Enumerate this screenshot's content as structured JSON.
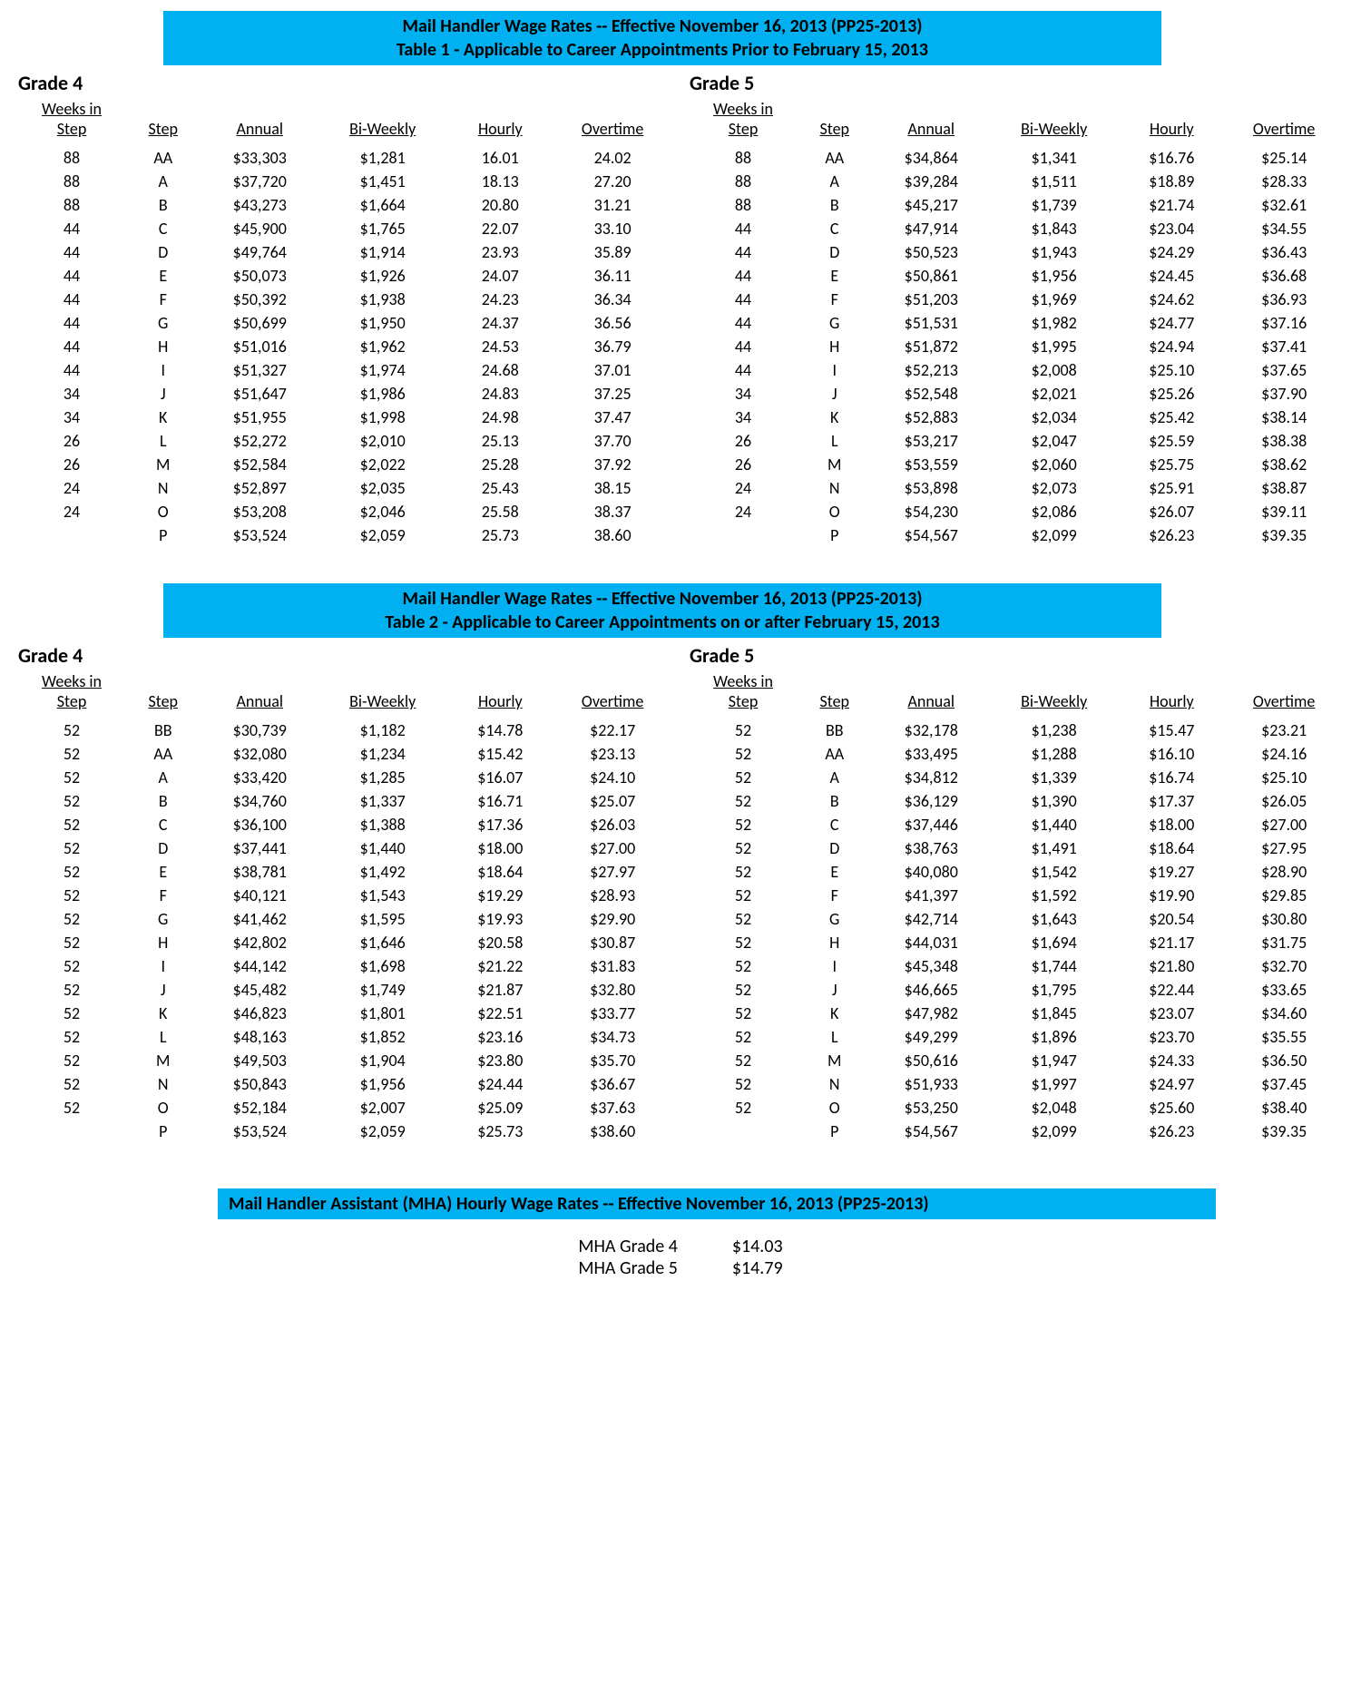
{
  "header_color": "#00b0f0",
  "table1": {
    "title_line1": "Mail Handler Wage Rates -- Effective November 16, 2013 (PP25-2013)",
    "title_line2": "Table 1 - Applicable to Career Appointments Prior to February 15, 2013",
    "columns": [
      "Weeks in Step",
      "Step",
      "Annual",
      "Bi-Weekly",
      "Hourly",
      "Overtime"
    ],
    "grade4": {
      "label": "Grade 4",
      "rows": [
        [
          "88",
          "AA",
          "$33,303",
          "$1,281",
          "16.01",
          "24.02"
        ],
        [
          "88",
          "A",
          "$37,720",
          "$1,451",
          "18.13",
          "27.20"
        ],
        [
          "88",
          "B",
          "$43,273",
          "$1,664",
          "20.80",
          "31.21"
        ],
        [
          "44",
          "C",
          "$45,900",
          "$1,765",
          "22.07",
          "33.10"
        ],
        [
          "44",
          "D",
          "$49,764",
          "$1,914",
          "23.93",
          "35.89"
        ],
        [
          "44",
          "E",
          "$50,073",
          "$1,926",
          "24.07",
          "36.11"
        ],
        [
          "44",
          "F",
          "$50,392",
          "$1,938",
          "24.23",
          "36.34"
        ],
        [
          "44",
          "G",
          "$50,699",
          "$1,950",
          "24.37",
          "36.56"
        ],
        [
          "44",
          "H",
          "$51,016",
          "$1,962",
          "24.53",
          "36.79"
        ],
        [
          "44",
          "I",
          "$51,327",
          "$1,974",
          "24.68",
          "37.01"
        ],
        [
          "34",
          "J",
          "$51,647",
          "$1,986",
          "24.83",
          "37.25"
        ],
        [
          "34",
          "K",
          "$51,955",
          "$1,998",
          "24.98",
          "37.47"
        ],
        [
          "26",
          "L",
          "$52,272",
          "$2,010",
          "25.13",
          "37.70"
        ],
        [
          "26",
          "M",
          "$52,584",
          "$2,022",
          "25.28",
          "37.92"
        ],
        [
          "24",
          "N",
          "$52,897",
          "$2,035",
          "25.43",
          "38.15"
        ],
        [
          "24",
          "O",
          "$53,208",
          "$2,046",
          "25.58",
          "38.37"
        ],
        [
          "",
          "P",
          "$53,524",
          "$2,059",
          "25.73",
          "38.60"
        ]
      ]
    },
    "grade5": {
      "label": "Grade 5",
      "rows": [
        [
          "88",
          "AA",
          "$34,864",
          "$1,341",
          "$16.76",
          "$25.14"
        ],
        [
          "88",
          "A",
          "$39,284",
          "$1,511",
          "$18.89",
          "$28.33"
        ],
        [
          "88",
          "B",
          "$45,217",
          "$1,739",
          "$21.74",
          "$32.61"
        ],
        [
          "44",
          "C",
          "$47,914",
          "$1,843",
          "$23.04",
          "$34.55"
        ],
        [
          "44",
          "D",
          "$50,523",
          "$1,943",
          "$24.29",
          "$36.43"
        ],
        [
          "44",
          "E",
          "$50,861",
          "$1,956",
          "$24.45",
          "$36.68"
        ],
        [
          "44",
          "F",
          "$51,203",
          "$1,969",
          "$24.62",
          "$36.93"
        ],
        [
          "44",
          "G",
          "$51,531",
          "$1,982",
          "$24.77",
          "$37.16"
        ],
        [
          "44",
          "H",
          "$51,872",
          "$1,995",
          "$24.94",
          "$37.41"
        ],
        [
          "44",
          "I",
          "$52,213",
          "$2,008",
          "$25.10",
          "$37.65"
        ],
        [
          "34",
          "J",
          "$52,548",
          "$2,021",
          "$25.26",
          "$37.90"
        ],
        [
          "34",
          "K",
          "$52,883",
          "$2,034",
          "$25.42",
          "$38.14"
        ],
        [
          "26",
          "L",
          "$53,217",
          "$2,047",
          "$25.59",
          "$38.38"
        ],
        [
          "26",
          "M",
          "$53,559",
          "$2,060",
          "$25.75",
          "$38.62"
        ],
        [
          "24",
          "N",
          "$53,898",
          "$2,073",
          "$25.91",
          "$38.87"
        ],
        [
          "24",
          "O",
          "$54,230",
          "$2,086",
          "$26.07",
          "$39.11"
        ],
        [
          "",
          "P",
          "$54,567",
          "$2,099",
          "$26.23",
          "$39.35"
        ]
      ]
    }
  },
  "table2": {
    "title_line1": "Mail Handler Wage Rates -- Effective November 16, 2013 (PP25-2013)",
    "title_line2": "Table 2 - Applicable to Career Appointments on or after February 15, 2013",
    "columns": [
      "Weeks in Step",
      "Step",
      "Annual",
      "Bi-Weekly",
      "Hourly",
      "Overtime"
    ],
    "grade4": {
      "label": "Grade 4",
      "rows": [
        [
          "52",
          "BB",
          "$30,739",
          "$1,182",
          "$14.78",
          "$22.17"
        ],
        [
          "52",
          "AA",
          "$32,080",
          "$1,234",
          "$15.42",
          "$23.13"
        ],
        [
          "52",
          "A",
          "$33,420",
          "$1,285",
          "$16.07",
          "$24.10"
        ],
        [
          "52",
          "B",
          "$34,760",
          "$1,337",
          "$16.71",
          "$25.07"
        ],
        [
          "52",
          "C",
          "$36,100",
          "$1,388",
          "$17.36",
          "$26.03"
        ],
        [
          "52",
          "D",
          "$37,441",
          "$1,440",
          "$18.00",
          "$27.00"
        ],
        [
          "52",
          "E",
          "$38,781",
          "$1,492",
          "$18.64",
          "$27.97"
        ],
        [
          "52",
          "F",
          "$40,121",
          "$1,543",
          "$19.29",
          "$28.93"
        ],
        [
          "52",
          "G",
          "$41,462",
          "$1,595",
          "$19.93",
          "$29.90"
        ],
        [
          "52",
          "H",
          "$42,802",
          "$1,646",
          "$20.58",
          "$30.87"
        ],
        [
          "52",
          "I",
          "$44,142",
          "$1,698",
          "$21.22",
          "$31.83"
        ],
        [
          "52",
          "J",
          "$45,482",
          "$1,749",
          "$21.87",
          "$32.80"
        ],
        [
          "52",
          "K",
          "$46,823",
          "$1,801",
          "$22.51",
          "$33.77"
        ],
        [
          "52",
          "L",
          "$48,163",
          "$1,852",
          "$23.16",
          "$34.73"
        ],
        [
          "52",
          "M",
          "$49,503",
          "$1,904",
          "$23.80",
          "$35.70"
        ],
        [
          "52",
          "N",
          "$50,843",
          "$1,956",
          "$24.44",
          "$36.67"
        ],
        [
          "52",
          "O",
          "$52,184",
          "$2,007",
          "$25.09",
          "$37.63"
        ],
        [
          "",
          "P",
          "$53,524",
          "$2,059",
          "$25.73",
          "$38.60"
        ]
      ]
    },
    "grade5": {
      "label": "Grade 5",
      "rows": [
        [
          "52",
          "BB",
          "$32,178",
          "$1,238",
          "$15.47",
          "$23.21"
        ],
        [
          "52",
          "AA",
          "$33,495",
          "$1,288",
          "$16.10",
          "$24.16"
        ],
        [
          "52",
          "A",
          "$34,812",
          "$1,339",
          "$16.74",
          "$25.10"
        ],
        [
          "52",
          "B",
          "$36,129",
          "$1,390",
          "$17.37",
          "$26.05"
        ],
        [
          "52",
          "C",
          "$37,446",
          "$1,440",
          "$18.00",
          "$27.00"
        ],
        [
          "52",
          "D",
          "$38,763",
          "$1,491",
          "$18.64",
          "$27.95"
        ],
        [
          "52",
          "E",
          "$40,080",
          "$1,542",
          "$19.27",
          "$28.90"
        ],
        [
          "52",
          "F",
          "$41,397",
          "$1,592",
          "$19.90",
          "$29.85"
        ],
        [
          "52",
          "G",
          "$42,714",
          "$1,643",
          "$20.54",
          "$30.80"
        ],
        [
          "52",
          "H",
          "$44,031",
          "$1,694",
          "$21.17",
          "$31.75"
        ],
        [
          "52",
          "I",
          "$45,348",
          "$1,744",
          "$21.80",
          "$32.70"
        ],
        [
          "52",
          "J",
          "$46,665",
          "$1,795",
          "$22.44",
          "$33.65"
        ],
        [
          "52",
          "K",
          "$47,982",
          "$1,845",
          "$23.07",
          "$34.60"
        ],
        [
          "52",
          "L",
          "$49,299",
          "$1,896",
          "$23.70",
          "$35.55"
        ],
        [
          "52",
          "M",
          "$50,616",
          "$1,947",
          "$24.33",
          "$36.50"
        ],
        [
          "52",
          "N",
          "$51,933",
          "$1,997",
          "$24.97",
          "$37.45"
        ],
        [
          "52",
          "O",
          "$53,250",
          "$2,048",
          "$25.60",
          "$38.40"
        ],
        [
          "",
          "P",
          "$54,567",
          "$2,099",
          "$26.23",
          "$39.35"
        ]
      ]
    }
  },
  "mha": {
    "title": "Mail Handler Assistant (MHA) Hourly Wage Rates -- Effective November 16, 2013 (PP25-2013)",
    "rows": [
      [
        "MHA Grade 4",
        "$14.03"
      ],
      [
        "MHA Grade 5",
        "$14.79"
      ]
    ]
  }
}
